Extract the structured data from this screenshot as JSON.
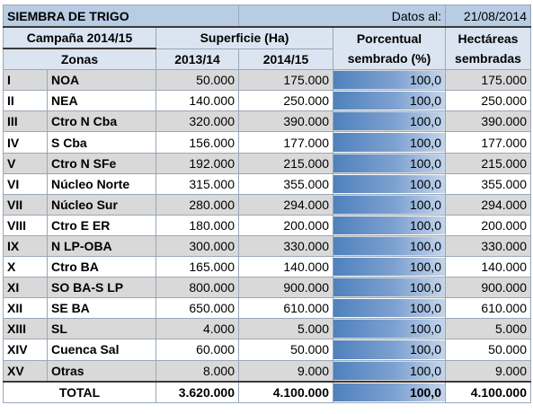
{
  "header": {
    "title": "SIEMBRA DE TRIGO",
    "date_label": "Datos al:",
    "date_value": "21/08/2014"
  },
  "columns": {
    "campaign": "Campaña 2014/15",
    "surface": "Superficie (Ha)",
    "pct_line1": "Porcentual",
    "pct_line2": "sembrado (%)",
    "ha_line1": "Hectáreas",
    "ha_line2": "sembradas",
    "zones": "Zonas",
    "y1": "2013/14",
    "y2": "2014/15"
  },
  "rows": [
    {
      "roman": "I",
      "zone": "NOA",
      "y1": "50.000",
      "y2": "175.000",
      "pct": "100,0",
      "ha": "175.000",
      "pct_value": 100
    },
    {
      "roman": "II",
      "zone": "NEA",
      "y1": "140.000",
      "y2": "250.000",
      "pct": "100,0",
      "ha": "250.000",
      "pct_value": 100
    },
    {
      "roman": "III",
      "zone": "Ctro N Cba",
      "y1": "320.000",
      "y2": "390.000",
      "pct": "100,0",
      "ha": "390.000",
      "pct_value": 100
    },
    {
      "roman": "IV",
      "zone": "S Cba",
      "y1": "156.000",
      "y2": "177.000",
      "pct": "100,0",
      "ha": "177.000",
      "pct_value": 100
    },
    {
      "roman": "V",
      "zone": "Ctro N SFe",
      "y1": "192.000",
      "y2": "215.000",
      "pct": "100,0",
      "ha": "215.000",
      "pct_value": 100
    },
    {
      "roman": "VI",
      "zone": "Núcleo Norte",
      "y1": "315.000",
      "y2": "355.000",
      "pct": "100,0",
      "ha": "355.000",
      "pct_value": 100
    },
    {
      "roman": "VII",
      "zone": "Núcleo Sur",
      "y1": "280.000",
      "y2": "294.000",
      "pct": "100,0",
      "ha": "294.000",
      "pct_value": 100
    },
    {
      "roman": "VIII",
      "zone": "Ctro E ER",
      "y1": "180.000",
      "y2": "200.000",
      "pct": "100,0",
      "ha": "200.000",
      "pct_value": 100
    },
    {
      "roman": "IX",
      "zone": "N LP-OBA",
      "y1": "300.000",
      "y2": "330.000",
      "pct": "100,0",
      "ha": "330.000",
      "pct_value": 100
    },
    {
      "roman": "X",
      "zone": "Ctro BA",
      "y1": "165.000",
      "y2": "140.000",
      "pct": "100,0",
      "ha": "140.000",
      "pct_value": 100
    },
    {
      "roman": "XI",
      "zone": "SO BA-S LP",
      "y1": "800.000",
      "y2": "900.000",
      "pct": "100,0",
      "ha": "900.000",
      "pct_value": 100
    },
    {
      "roman": "XII",
      "zone": "SE BA",
      "y1": "650.000",
      "y2": "610.000",
      "pct": "100,0",
      "ha": "610.000",
      "pct_value": 100
    },
    {
      "roman": "XIII",
      "zone": "SL",
      "y1": "4.000",
      "y2": "5.000",
      "pct": "100,0",
      "ha": "5.000",
      "pct_value": 100
    },
    {
      "roman": "XIV",
      "zone": "Cuenca Sal",
      "y1": "60.000",
      "y2": "50.000",
      "pct": "100,0",
      "ha": "50.000",
      "pct_value": 100
    },
    {
      "roman": "XV",
      "zone": "Otras",
      "y1": "8.000",
      "y2": "9.000",
      "pct": "100,0",
      "ha": "9.000",
      "pct_value": 100
    }
  ],
  "total": {
    "label": "TOTAL",
    "y1": "3.620.000",
    "y2": "4.100.000",
    "pct": "100,0",
    "ha": "4.100.000",
    "pct_value": 100
  },
  "colors": {
    "title_bg": "#b8cce4",
    "header_bg": "#dbe5f1",
    "alt_row_bg": "#d9d9d9",
    "bar_color": "#4f81bd"
  }
}
